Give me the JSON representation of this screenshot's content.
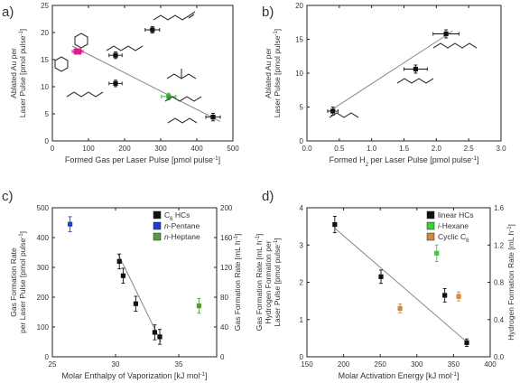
{
  "chart_data": [
    {
      "panel_label": "a)",
      "type": "scatter",
      "xlabel_parts": [
        {
          "t": "Formed Gas per Laser Pulse [pmol pulse"
        },
        {
          "t": "-1",
          "sup": true
        },
        {
          "t": "]"
        }
      ],
      "ylabel_lines": [
        [
          {
            "t": "Ablated Au per"
          }
        ],
        [
          {
            "t": "Laser Pulse [pmol pulse"
          },
          {
            "t": "-1",
            "sup": true
          },
          {
            "t": "]"
          }
        ]
      ],
      "xlim": [
        0,
        500
      ],
      "ylim": [
        0,
        25
      ],
      "xticks": [
        0,
        100,
        200,
        300,
        400,
        500
      ],
      "yticks": [
        0,
        5,
        10,
        15,
        20,
        25
      ],
      "points": [
        {
          "x": 65,
          "y": 16.5,
          "xerr": 10,
          "yerr": 0.5,
          "color": "#e0198f"
        },
        {
          "x": 75,
          "y": 16.5,
          "xerr": 10,
          "yerr": 0.5,
          "color": "#e0198f"
        },
        {
          "x": 175,
          "y": 15.8,
          "xerr": 18,
          "yerr": 0.6,
          "color": "#111111"
        },
        {
          "x": 175,
          "y": 10.6,
          "xerr": 18,
          "yerr": 0.6,
          "color": "#111111"
        },
        {
          "x": 277,
          "y": 20.5,
          "xerr": 20,
          "yerr": 0.6,
          "color": "#111111"
        },
        {
          "x": 322,
          "y": 8.2,
          "xerr": 20,
          "yerr": 0.6,
          "color": "#3aa63a"
        },
        {
          "x": 445,
          "y": 4.4,
          "xerr": 20,
          "yerr": 0.7,
          "color": "#111111"
        }
      ],
      "fit": {
        "x": [
          55,
          465
        ],
        "y": [
          17.5,
          3.6
        ]
      },
      "colors": {
        "marker": "#111111",
        "i_hexane": "#3aa63a",
        "cyclic": "#e0198f",
        "fit": "#888888"
      }
    },
    {
      "panel_label": "b)",
      "type": "scatter",
      "xlabel_parts": [
        {
          "t": "Formed H"
        },
        {
          "t": "2",
          "sub": true
        },
        {
          "t": " per Laser Pulse [pmol pulse"
        },
        {
          "t": "-1",
          "sup": true
        },
        {
          "t": "]"
        }
      ],
      "ylabel_lines": [
        [
          {
            "t": "Ablated Au per"
          }
        ],
        [
          {
            "t": "Laser Pulse [pmol pulse"
          },
          {
            "t": "-1",
            "sup": true
          },
          {
            "t": "]"
          }
        ]
      ],
      "xlim": [
        0,
        3
      ],
      "ylim": [
        0,
        20
      ],
      "xticks": [
        0.0,
        0.5,
        1.0,
        1.5,
        2.0,
        2.5,
        3.0
      ],
      "yticks": [
        0,
        5,
        10,
        15,
        20
      ],
      "points": [
        {
          "x": 0.4,
          "y": 4.4,
          "xerr": 0.08,
          "yerr": 0.6,
          "color": "#111111"
        },
        {
          "x": 1.68,
          "y": 10.6,
          "xerr": 0.18,
          "yerr": 0.6,
          "color": "#111111"
        },
        {
          "x": 2.15,
          "y": 15.8,
          "xerr": 0.2,
          "yerr": 0.6,
          "color": "#111111"
        }
      ],
      "fit": {
        "x": [
          0.35,
          2.25
        ],
        "y": [
          4.4,
          16.2
        ]
      },
      "colors": {
        "marker": "#111111",
        "fit": "#888888"
      }
    },
    {
      "panel_label": "c)",
      "type": "scatter",
      "xlabel_parts": [
        {
          "t": "Molar Enthalpy of Vaporization [kJ mol"
        },
        {
          "t": "-1",
          "sup": true
        },
        {
          "t": "]"
        }
      ],
      "ylabel_lines": [
        [
          {
            "t": "Gas Formation Rate"
          }
        ],
        [
          {
            "t": "per Laser Pulse [pmol pulse"
          },
          {
            "t": "-1",
            "sup": true
          },
          {
            "t": "]"
          }
        ]
      ],
      "y2label_parts": [
        {
          "t": "Gas Formation Rate [mL h"
        },
        {
          "t": "-1",
          "sup": true
        },
        {
          "t": "]"
        }
      ],
      "xlim": [
        25,
        38
      ],
      "ylim": [
        0,
        500
      ],
      "y2lim": [
        0,
        200
      ],
      "xticks": [
        25,
        30,
        35
      ],
      "yticks": [
        0,
        100,
        200,
        300,
        400,
        500
      ],
      "y2ticks": [
        0,
        40,
        80,
        120,
        160,
        200
      ],
      "points": [
        {
          "x": 30.3,
          "y": 320,
          "xerr": 0,
          "yerr": 25,
          "color": "#111111"
        },
        {
          "x": 30.6,
          "y": 272,
          "xerr": 0,
          "yerr": 25,
          "color": "#111111"
        },
        {
          "x": 31.6,
          "y": 178,
          "xerr": 0,
          "yerr": 25,
          "color": "#111111"
        },
        {
          "x": 33.1,
          "y": 82,
          "xerr": 0,
          "yerr": 25,
          "color": "#111111"
        },
        {
          "x": 33.5,
          "y": 67,
          "xerr": 0,
          "yerr": 25,
          "color": "#111111"
        },
        {
          "x": 26.4,
          "y": 445,
          "xerr": 0,
          "yerr": 25,
          "color": "#1f3fd0"
        },
        {
          "x": 36.6,
          "y": 171,
          "xerr": 0,
          "yerr": 25,
          "color": "#5a9a3c"
        }
      ],
      "fit": {
        "x": [
          30.2,
          33.6
        ],
        "y": [
          345,
          50
        ]
      },
      "legend": [
        {
          "parts": [
            {
              "t": "C"
            },
            {
              "t": "6",
              "sub": true
            },
            {
              "t": " HCs"
            }
          ],
          "color": "#111111"
        },
        {
          "parts": [
            {
              "t": "n",
              "it": true
            },
            {
              "t": "-Pentane"
            }
          ],
          "color": "#1f3fd0"
        },
        {
          "parts": [
            {
              "t": "n",
              "it": true
            },
            {
              "t": "-Heptane"
            }
          ],
          "color": "#5a9a3c"
        }
      ],
      "legend_placement": "top-right",
      "colors": {
        "c6": "#111111",
        "pentane": "#1f3fd0",
        "heptane": "#5a9a3c",
        "fit": "#888888"
      }
    },
    {
      "panel_label": "d)",
      "type": "scatter",
      "xlabel_parts": [
        {
          "t": "Molar Activation Energy [kJ mol"
        },
        {
          "t": "-1",
          "sup": true
        },
        {
          "t": "]"
        }
      ],
      "ylabel_lines": [
        [
          {
            "t": "Gas Formation Rate [mL h"
          },
          {
            "t": "-1",
            "sup": true
          },
          {
            "t": "]"
          }
        ],
        [
          {
            "t": "Hydrogen Formation per"
          }
        ],
        [
          {
            "t": "Laser Pulse [pmol pulse"
          },
          {
            "t": "-1",
            "sup": true
          },
          {
            "t": "]"
          }
        ]
      ],
      "y2label_parts": [
        {
          "t": "Hydrogen Formation Rate [mL h"
        },
        {
          "t": "-1",
          "sup": true
        },
        {
          "t": "]"
        }
      ],
      "xlim": [
        150,
        400
      ],
      "ylim": [
        0,
        4
      ],
      "y2lim": [
        0,
        1.6
      ],
      "xticks": [
        150,
        200,
        250,
        300,
        350,
        400
      ],
      "yticks": [
        0,
        1,
        2,
        3,
        4
      ],
      "y2ticks": [
        0.0,
        0.4,
        0.8,
        1.2,
        1.6
      ],
      "points": [
        {
          "x": 188,
          "y": 3.55,
          "xerr": 0,
          "yerr": 0.22,
          "color": "#111111"
        },
        {
          "x": 251,
          "y": 2.15,
          "xerr": 0,
          "yerr": 0.18,
          "color": "#111111"
        },
        {
          "x": 277,
          "y": 1.3,
          "xerr": 0,
          "yerr": 0.12,
          "color": "#d08a3a"
        },
        {
          "x": 327,
          "y": 2.78,
          "xerr": 0,
          "yerr": 0.22,
          "color": "#38d038"
        },
        {
          "x": 338,
          "y": 1.65,
          "xerr": 0,
          "yerr": 0.18,
          "color": "#111111"
        },
        {
          "x": 357,
          "y": 1.62,
          "xerr": 0,
          "yerr": 0.12,
          "color": "#d08a3a"
        },
        {
          "x": 368,
          "y": 0.38,
          "xerr": 0,
          "yerr": 0.1,
          "color": "#111111"
        }
      ],
      "fit": {
        "x": [
          188,
          368
        ],
        "y": [
          3.45,
          0.4
        ]
      },
      "legend": [
        {
          "parts": [
            {
              "t": "linear HCs"
            }
          ],
          "color": "#111111"
        },
        {
          "parts": [
            {
              "t": "i",
              "it": true
            },
            {
              "t": "-Hexane"
            }
          ],
          "color": "#38d038"
        },
        {
          "parts": [
            {
              "t": "Cyclic C"
            },
            {
              "t": "6",
              "sub": true
            }
          ],
          "color": "#d08a3a"
        }
      ],
      "legend_placement": "top-right",
      "colors": {
        "linear": "#111111",
        "i_hexane": "#38d038",
        "cyclic": "#d08a3a",
        "fit": "#888888"
      }
    }
  ]
}
